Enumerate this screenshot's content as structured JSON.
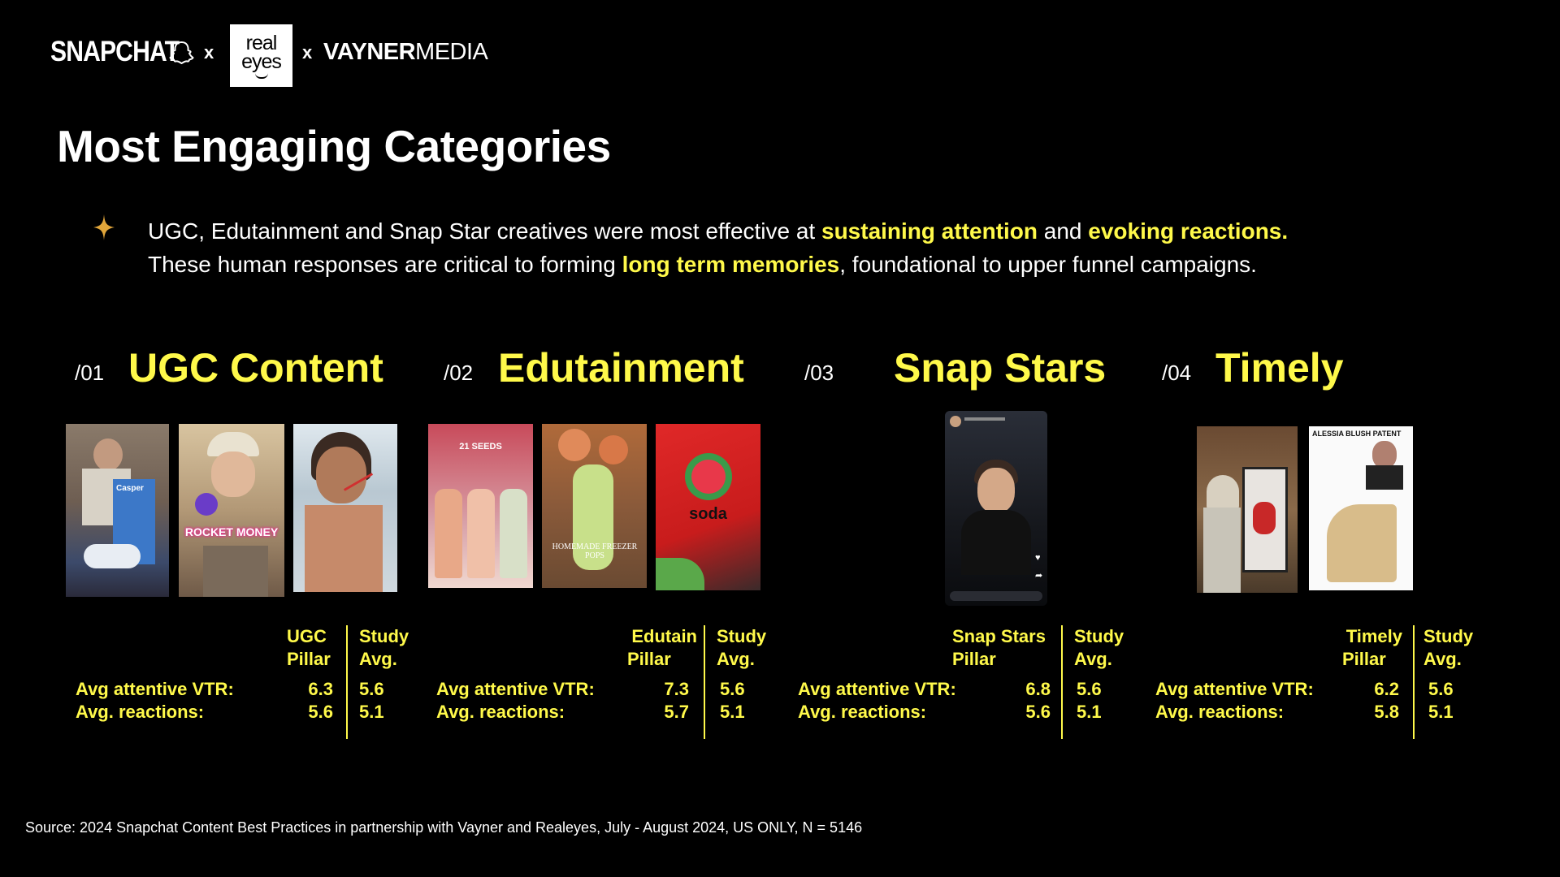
{
  "header": {
    "snapchat_logo": "SNAPCHAT",
    "sep1": "x",
    "realeyes_line1": "real",
    "realeyes_line2": "eyes",
    "sep2": "x",
    "vayner_bold": "VAYNER",
    "vayner_light": "MEDIA"
  },
  "title": "Most Engaging Categories",
  "intro": {
    "l1a": "UGC, Edutainment and Snap Star creatives were most effective at ",
    "l1b": "sustaining attention",
    "l1c": " and ",
    "l1d": "evoking reactions.",
    "l2a": "These human responses are critical to forming ",
    "l2b": "long term memories",
    "l2c": ", foundational to upper funnel campaigns."
  },
  "categories": [
    {
      "num": "/01",
      "name": "UGC Content",
      "pillar_head_1": "UGC",
      "pillar_head_2": "Pillar",
      "study_head_1": "Study",
      "study_head_2": "Avg.",
      "metric1": "Avg attentive VTR:",
      "metric2": "Avg. reactions:",
      "pillar_vtr": "6.3",
      "study_vtr": "5.6",
      "pillar_react": "5.6",
      "study_react": "5.1",
      "thumb_labels": [
        "Casper",
        "ROCKET MONEY",
        ""
      ]
    },
    {
      "num": "/02",
      "name": "Edutainment",
      "pillar_head_1": "Edutain",
      "pillar_head_2": "Pillar",
      "study_head_1": "Study",
      "study_head_2": "Avg.",
      "metric1": "Avg attentive VTR:",
      "metric2": "Avg. reactions:",
      "pillar_vtr": "7.3",
      "study_vtr": "5.6",
      "pillar_react": "5.7",
      "study_react": "5.1",
      "thumb_labels": [
        "21 SEEDS",
        "HOMEMADE FREEZER POPS",
        "soda"
      ]
    },
    {
      "num": "/03",
      "name": "Snap Stars",
      "pillar_head_1": "Snap Stars",
      "pillar_head_2": "Pillar",
      "study_head_1": "Study",
      "study_head_2": "Avg.",
      "metric1": "Avg attentive VTR:",
      "metric2": "Avg. reactions:",
      "pillar_vtr": "6.8",
      "study_vtr": "5.6",
      "pillar_react": "5.6",
      "study_react": "5.1",
      "thumb_labels": []
    },
    {
      "num": "/04",
      "name": "Timely",
      "pillar_head_1": "Timely",
      "pillar_head_2": "Pillar",
      "study_head_1": "Study",
      "study_head_2": "Avg.",
      "metric1": "Avg attentive VTR:",
      "metric2": "Avg. reactions:",
      "pillar_vtr": "6.2",
      "study_vtr": "5.6",
      "pillar_react": "5.8",
      "study_react": "5.1",
      "thumb_labels": [
        "",
        "ALESSIA BLUSH PATENT"
      ]
    }
  ],
  "source": "Source: 2024 Snapchat Content Best Practices in partnership with Vayner and Realeyes, July - August 2024, US ONLY, N = 5146",
  "colors": {
    "accent": "#fff94a",
    "background": "#000000",
    "text": "#ffffff"
  }
}
